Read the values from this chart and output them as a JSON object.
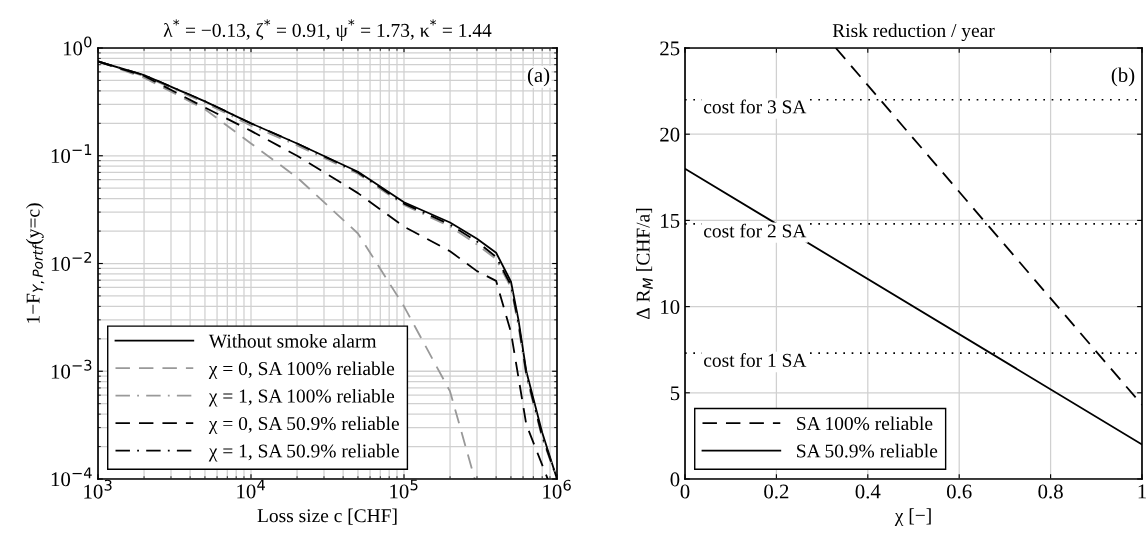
{
  "chart_data": [
    {
      "type": "line",
      "title": "λ$^{*}$ = −0.13, ζ$^{*}$ = 0.91, ψ$^{*}$ = 1.73, κ$^{*}$ = 1.44",
      "xlabel": "Loss size c [CHF]",
      "ylabel": "1−F$_{Y,Portf}$(y=c)",
      "log": "xy",
      "grid": true,
      "legend": "bottom left",
      "xlim": [
        1000,
        1000000
      ],
      "ylim": [
        0.0001,
        1
      ],
      "xticks": [
        {
          "value": 1000,
          "label": "10$^{3}$"
        },
        {
          "value": 10000,
          "label": "10$^{4}$"
        },
        {
          "value": 100000,
          "label": "10$^{5}$"
        },
        {
          "value": 1000000,
          "label": "10$^{6}$"
        }
      ],
      "yticks": [
        {
          "value": 0.0001,
          "label": "10$^{−4}$"
        },
        {
          "value": 0.001,
          "label": "10$^{−3}$"
        },
        {
          "value": 0.01,
          "label": "10$^{−2}$"
        },
        {
          "value": 0.1,
          "label": "10$^{−1}$"
        },
        {
          "value": 1,
          "label": "10$^{0}$"
        }
      ],
      "annotations": [
        "(a)"
      ],
      "series": [
        {
          "name": "Without smoke alarm",
          "color": "#000000",
          "line_style": "solid",
          "x": [
            1000,
            2000,
            5000,
            10000,
            20000,
            50000,
            100000,
            200000,
            300000,
            400000,
            500000,
            560000,
            630000,
            800000,
            1000000
          ],
          "values": [
            0.75,
            0.56,
            0.32,
            0.2,
            0.13,
            0.071,
            0.037,
            0.024,
            0.017,
            0.0126,
            0.0068,
            0.003,
            0.001,
            0.00027,
            0.0001
          ]
        },
        {
          "name": "χ = 0, SA 100% reliable",
          "color": "#999999",
          "line_style": "dashed",
          "x": [
            1000,
            2000,
            5000,
            10000,
            20000,
            50000,
            100000,
            200000,
            290000
          ],
          "values": [
            0.75,
            0.53,
            0.27,
            0.13,
            0.063,
            0.019,
            0.004,
            0.00065,
            0.0001
          ]
        },
        {
          "name": "χ = 1, SA 100% reliable",
          "color": "#999999",
          "line_style": "dashdot",
          "x": [
            1000,
            2000,
            5000,
            10000,
            20000,
            50000,
            100000,
            200000,
            300000,
            400000,
            500000,
            560000,
            630000,
            800000,
            1000000
          ],
          "values": [
            0.75,
            0.55,
            0.31,
            0.19,
            0.125,
            0.068,
            0.035,
            0.022,
            0.015,
            0.011,
            0.006,
            0.0026,
            0.0009,
            0.00024,
            0.0001
          ]
        },
        {
          "name": "χ = 0, SA 50.9% reliable",
          "color": "#000000",
          "line_style": "dashed",
          "x": [
            1000,
            2000,
            5000,
            10000,
            20000,
            50000,
            100000,
            200000,
            300000,
            400000,
            500000,
            630000,
            870000
          ],
          "values": [
            0.75,
            0.55,
            0.28,
            0.17,
            0.1,
            0.045,
            0.022,
            0.013,
            0.0085,
            0.0069,
            0.0023,
            0.00032,
            0.0001
          ]
        },
        {
          "name": "χ = 1, SA 50.9% reliable",
          "color": "#000000",
          "line_style": "dashdot",
          "x": [
            1000,
            2000,
            5000,
            10000,
            20000,
            50000,
            100000,
            200000,
            300000,
            400000,
            500000,
            560000,
            630000,
            800000,
            1000000
          ],
          "values": [
            0.75,
            0.56,
            0.32,
            0.2,
            0.13,
            0.07,
            0.036,
            0.023,
            0.016,
            0.0115,
            0.0063,
            0.0028,
            0.00095,
            0.00025,
            0.0001
          ]
        }
      ]
    },
    {
      "type": "line",
      "title": "Risk reduction / year",
      "xlabel": "χ [−]",
      "ylabel": "Δ R$_{M}$ [CHF/a]",
      "grid": true,
      "legend": "bottom left",
      "xlim": [
        0,
        1
      ],
      "ylim": [
        0,
        25
      ],
      "xticks": [
        0,
        0.2,
        0.4,
        0.6,
        0.8,
        1
      ],
      "yticks": [
        0,
        5,
        10,
        15,
        20,
        25
      ],
      "annotations": [
        "(b)"
      ],
      "ref_lines": [
        {
          "axis": "y",
          "value": 22,
          "label": "cost for 3 SA",
          "color": "#000000",
          "line_style": "dotted"
        },
        {
          "axis": "y",
          "value": 14.8,
          "label": "cost for 2 SA",
          "color": "#000000",
          "line_style": "dotted"
        },
        {
          "axis": "y",
          "value": 7.3,
          "label": "cost for 1 SA",
          "color": "#000000",
          "line_style": "dotted"
        }
      ],
      "series": [
        {
          "name": "SA 100% reliable",
          "color": "#000000",
          "line_style": "dashed",
          "x": [
            0.33,
            1
          ],
          "values": [
            25,
            4.3
          ]
        },
        {
          "name": "SA 50.9% reliable",
          "color": "#000000",
          "line_style": "solid",
          "x": [
            0,
            1
          ],
          "values": [
            18,
            2
          ]
        }
      ]
    }
  ]
}
